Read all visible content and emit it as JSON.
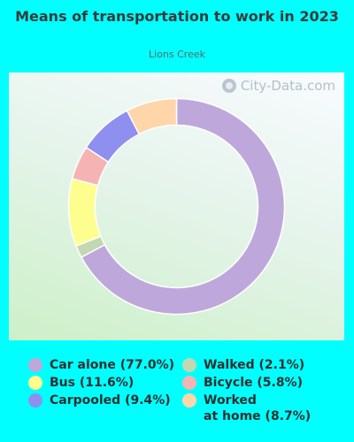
{
  "chart_data": {
    "type": "pie",
    "title": "Means of transportation to work in 2023",
    "subtitle": "Lions Creek",
    "watermark": "City-Data.com",
    "donut": true,
    "slices": [
      {
        "label": "Car alone",
        "value": 77.0,
        "color": "#bea8db"
      },
      {
        "label": "Walked",
        "value": 2.1,
        "color": "#c2d8b0"
      },
      {
        "label": "Bus",
        "value": 11.6,
        "color": "#fefe8e"
      },
      {
        "label": "Bicycle",
        "value": 5.8,
        "color": "#f6b3b4"
      },
      {
        "label": "Carpooled",
        "value": 9.4,
        "color": "#8f8ff0"
      },
      {
        "label": "Worked at home",
        "value": 8.7,
        "color": "#fed6aa"
      }
    ],
    "legend": [
      {
        "text": "Car alone (77.0%)",
        "color": "#bea8db"
      },
      {
        "text": "Bus (11.6%)",
        "color": "#fefe8e"
      },
      {
        "text": "Carpooled (9.4%)",
        "color": "#8f8ff0"
      },
      {
        "text": "Walked (2.1%)",
        "color": "#c2d8b0"
      },
      {
        "text": "Bicycle (5.8%)",
        "color": "#f6b3b4"
      },
      {
        "text_line1": "Worked",
        "text_line2": "at home (8.7%)",
        "color": "#fed6aa"
      }
    ]
  }
}
